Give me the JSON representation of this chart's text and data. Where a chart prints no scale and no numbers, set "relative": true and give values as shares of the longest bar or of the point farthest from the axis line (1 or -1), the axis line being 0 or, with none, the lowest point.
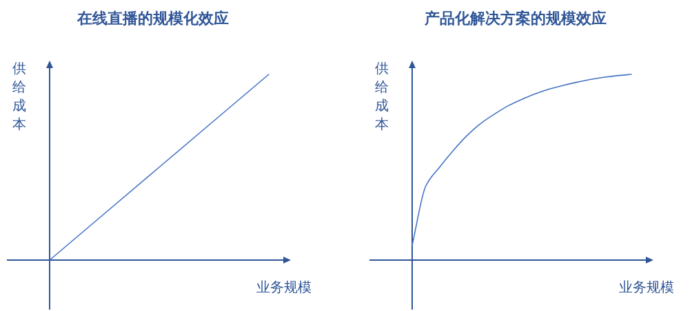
{
  "chart_data": [
    {
      "type": "line",
      "title": "在线直播的规模化效应",
      "xlabel": "业务规模",
      "ylabel": "供给成本",
      "relative": true,
      "color": "#4472c4",
      "categories": [
        null,
        null,
        null,
        null,
        null
      ],
      "values": [
        0,
        0.25,
        0.5,
        0.75,
        1
      ]
    },
    {
      "type": "line",
      "title": "产品化解决方案的规模效应",
      "xlabel": "业务规模",
      "ylabel": "供给成本",
      "relative": true,
      "color": "#4472c4",
      "categories": [
        null,
        null,
        null,
        null,
        null,
        null,
        null,
        null,
        null,
        null,
        null,
        null,
        null,
        null,
        null,
        null,
        null
      ],
      "values": [
        0.08,
        0.4,
        0.5,
        0.59,
        0.67,
        0.735,
        0.785,
        0.83,
        0.865,
        0.895,
        0.92,
        0.94,
        0.957,
        0.972,
        0.984,
        0.993,
        1
      ]
    }
  ]
}
